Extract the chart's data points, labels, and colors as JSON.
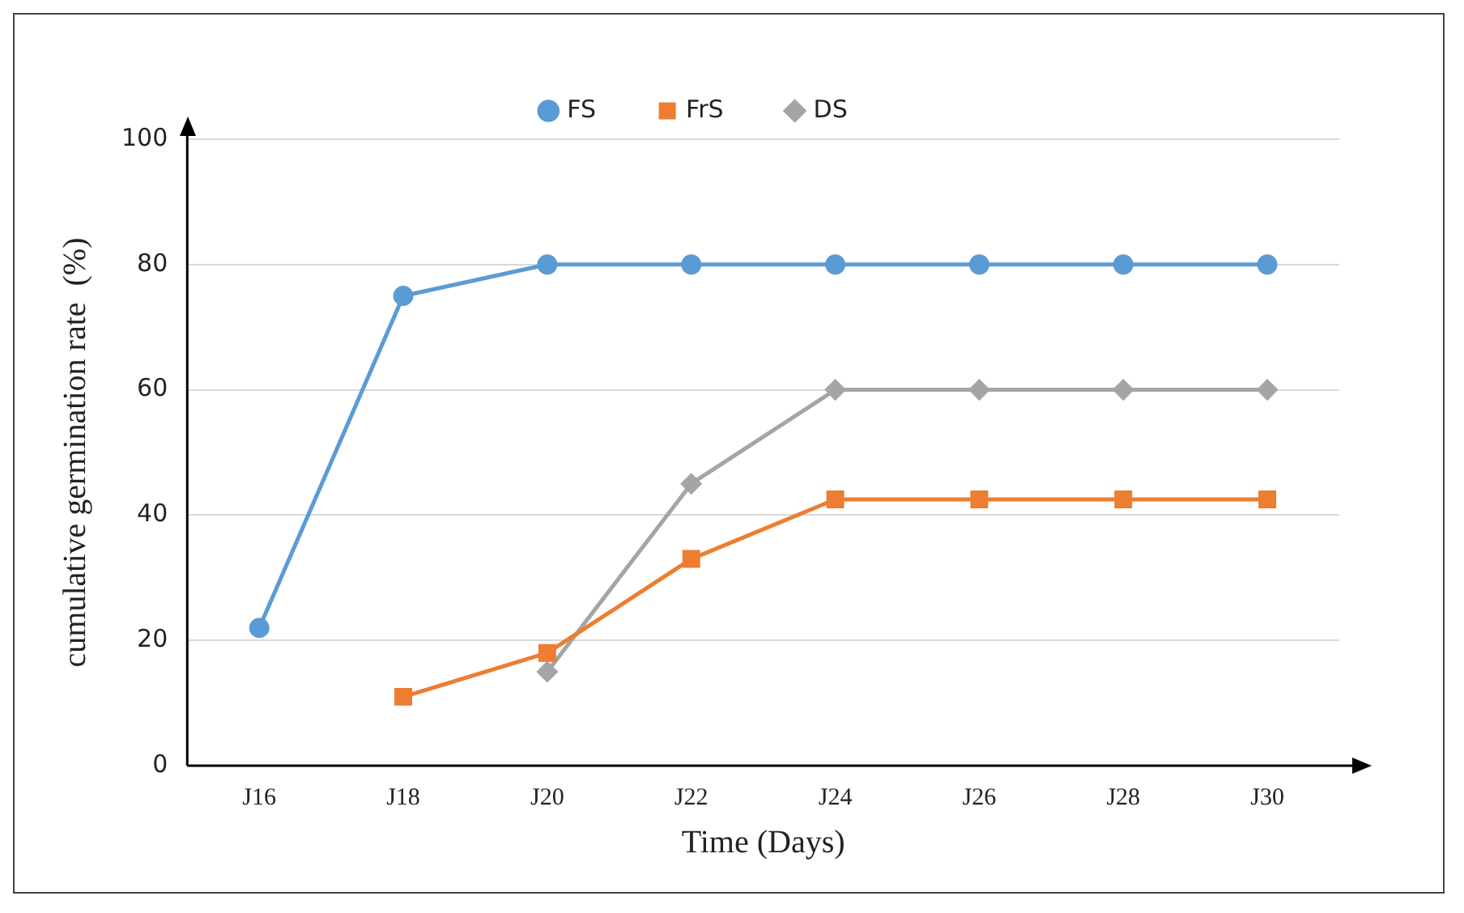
{
  "chart_data": {
    "type": "line",
    "xlabel": "Time (Days)",
    "ylabel": "cumulative germination rate  (%)",
    "categories": [
      "J16",
      "J18",
      "J20",
      "J22",
      "J24",
      "J26",
      "J28",
      "J30"
    ],
    "series": [
      {
        "name": "FS",
        "color": "#5b9bd5",
        "marker": "circle",
        "values": [
          22,
          75,
          80,
          80,
          80,
          80,
          80,
          80
        ]
      },
      {
        "name": "FrS",
        "color": "#ed7d31",
        "marker": "square",
        "values": [
          null,
          11,
          18,
          33,
          42.5,
          42.5,
          42.5,
          42.5
        ]
      },
      {
        "name": "DS",
        "color": "#a5a5a5",
        "marker": "diamond",
        "values": [
          null,
          null,
          15,
          45,
          60,
          60,
          60,
          60
        ]
      }
    ],
    "ylim": [
      0,
      100
    ],
    "yticks": [
      0,
      20,
      40,
      60,
      80,
      100
    ],
    "grid": "y",
    "legend": "top"
  }
}
